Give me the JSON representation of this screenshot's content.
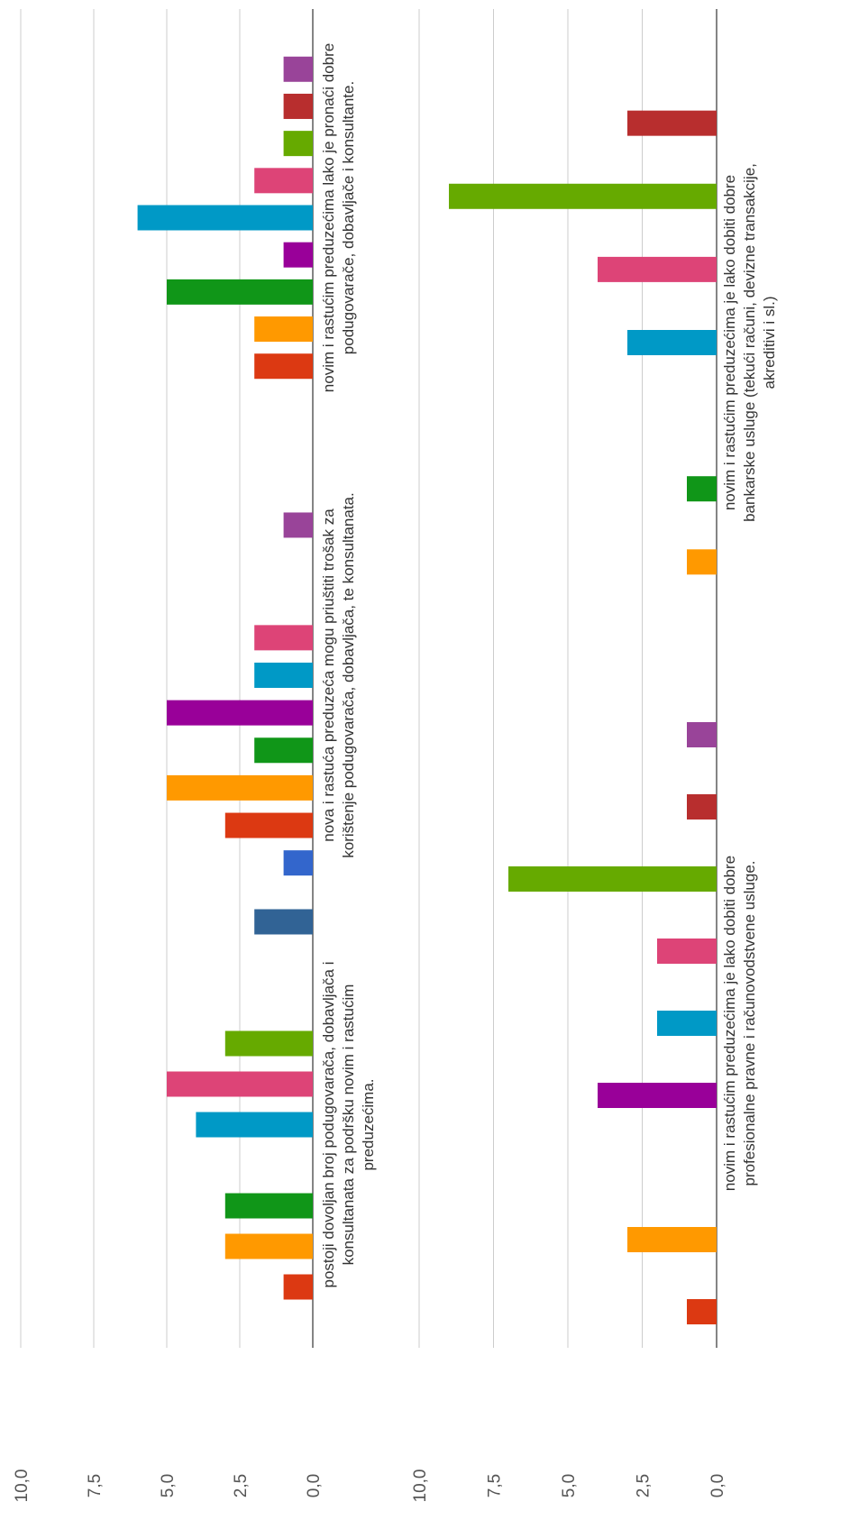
{
  "chart_data": [
    {
      "type": "bar",
      "orientation": "rotated-90",
      "ylim": [
        0,
        10
      ],
      "yticks": [
        "0,0",
        "2,5",
        "5,0",
        "7,5",
        "10,0"
      ],
      "grid": true,
      "groups": [
        {
          "label_lines": [
            "postoji dovoljan broj podugovarača, dobavljača i",
            "konsultanata za podršku novim i rastućim",
            "preduzećima."
          ],
          "bars": [
            {
              "series": 1,
              "value": 0
            },
            {
              "series": 2,
              "value": 1
            },
            {
              "series": 3,
              "value": 3
            },
            {
              "series": 4,
              "value": 3
            },
            {
              "series": 5,
              "value": 0
            },
            {
              "series": 6,
              "value": 4
            },
            {
              "series": 7,
              "value": 5
            },
            {
              "series": 8,
              "value": 3
            },
            {
              "series": 9,
              "value": 0
            },
            {
              "series": 10,
              "value": 0
            },
            {
              "series": 11,
              "value": 2
            }
          ]
        },
        {
          "label_lines": [
            "nova i rastuća preduzeća mogu priuštiti trošak za",
            "korištenje podugovarača, dobavljača, te konsultanata."
          ],
          "bars": [
            {
              "series": 1,
              "value": 1
            },
            {
              "series": 2,
              "value": 3
            },
            {
              "series": 3,
              "value": 5
            },
            {
              "series": 4,
              "value": 2
            },
            {
              "series": 5,
              "value": 5
            },
            {
              "series": 6,
              "value": 2
            },
            {
              "series": 7,
              "value": 2
            },
            {
              "series": 8,
              "value": 0
            },
            {
              "series": 9,
              "value": 0
            },
            {
              "series": 10,
              "value": 1
            },
            {
              "series": 11,
              "value": 0
            }
          ]
        },
        {
          "label_lines": [
            "novim i rastućim preduzećima lako je pronaći dobre",
            "podugovarače, dobavljače i konsultante."
          ],
          "bars": [
            {
              "series": 1,
              "value": 0
            },
            {
              "series": 2,
              "value": 2
            },
            {
              "series": 3,
              "value": 2
            },
            {
              "series": 4,
              "value": 5
            },
            {
              "series": 5,
              "value": 1
            },
            {
              "series": 6,
              "value": 6
            },
            {
              "series": 7,
              "value": 2
            },
            {
              "series": 8,
              "value": 1
            },
            {
              "series": 9,
              "value": 1
            },
            {
              "series": 10,
              "value": 1
            },
            {
              "series": 11,
              "value": 0
            }
          ]
        }
      ]
    },
    {
      "type": "bar",
      "orientation": "rotated-90",
      "ylim": [
        0,
        10
      ],
      "yticks": [
        "0,0",
        "2,5",
        "5,0",
        "7,5",
        "10,0"
      ],
      "grid": true,
      "groups": [
        {
          "label_lines": [
            "novim i rastućim preduzećima je lako dobiti dobre",
            "profesionalne pravne i računovodstvene usluge."
          ],
          "bars": [
            {
              "series": 2,
              "value": 1
            },
            {
              "series": 3,
              "value": 3
            },
            {
              "series": 4,
              "value": 0
            },
            {
              "series": 5,
              "value": 4
            },
            {
              "series": 6,
              "value": 2
            },
            {
              "series": 7,
              "value": 2
            },
            {
              "series": 8,
              "value": 7
            },
            {
              "series": 9,
              "value": 1
            },
            {
              "series": 10,
              "value": 1
            }
          ]
        },
        {
          "label_lines": [
            "novim i rastućim preduzećima je lako dobiti dobre",
            "bankarske usluge (tekući računi, devizne transakcije,",
            "akreditivi i sl.)"
          ],
          "bars": [
            {
              "series": 2,
              "value": 0
            },
            {
              "series": 3,
              "value": 1
            },
            {
              "series": 4,
              "value": 1
            },
            {
              "series": 5,
              "value": 0
            },
            {
              "series": 6,
              "value": 3
            },
            {
              "series": 7,
              "value": 4
            },
            {
              "series": 8,
              "value": 9
            },
            {
              "series": 9,
              "value": 3
            },
            {
              "series": 10,
              "value": 0
            }
          ]
        }
      ]
    }
  ],
  "series_colors": {
    "1": "#3366cc",
    "2": "#dc3912",
    "3": "#ff9900",
    "4": "#109618",
    "5": "#990099",
    "6": "#0099c6",
    "7": "#dd4477",
    "8": "#66aa00",
    "9": "#b82e2e",
    "10": "#994499",
    "11": "#316395"
  }
}
